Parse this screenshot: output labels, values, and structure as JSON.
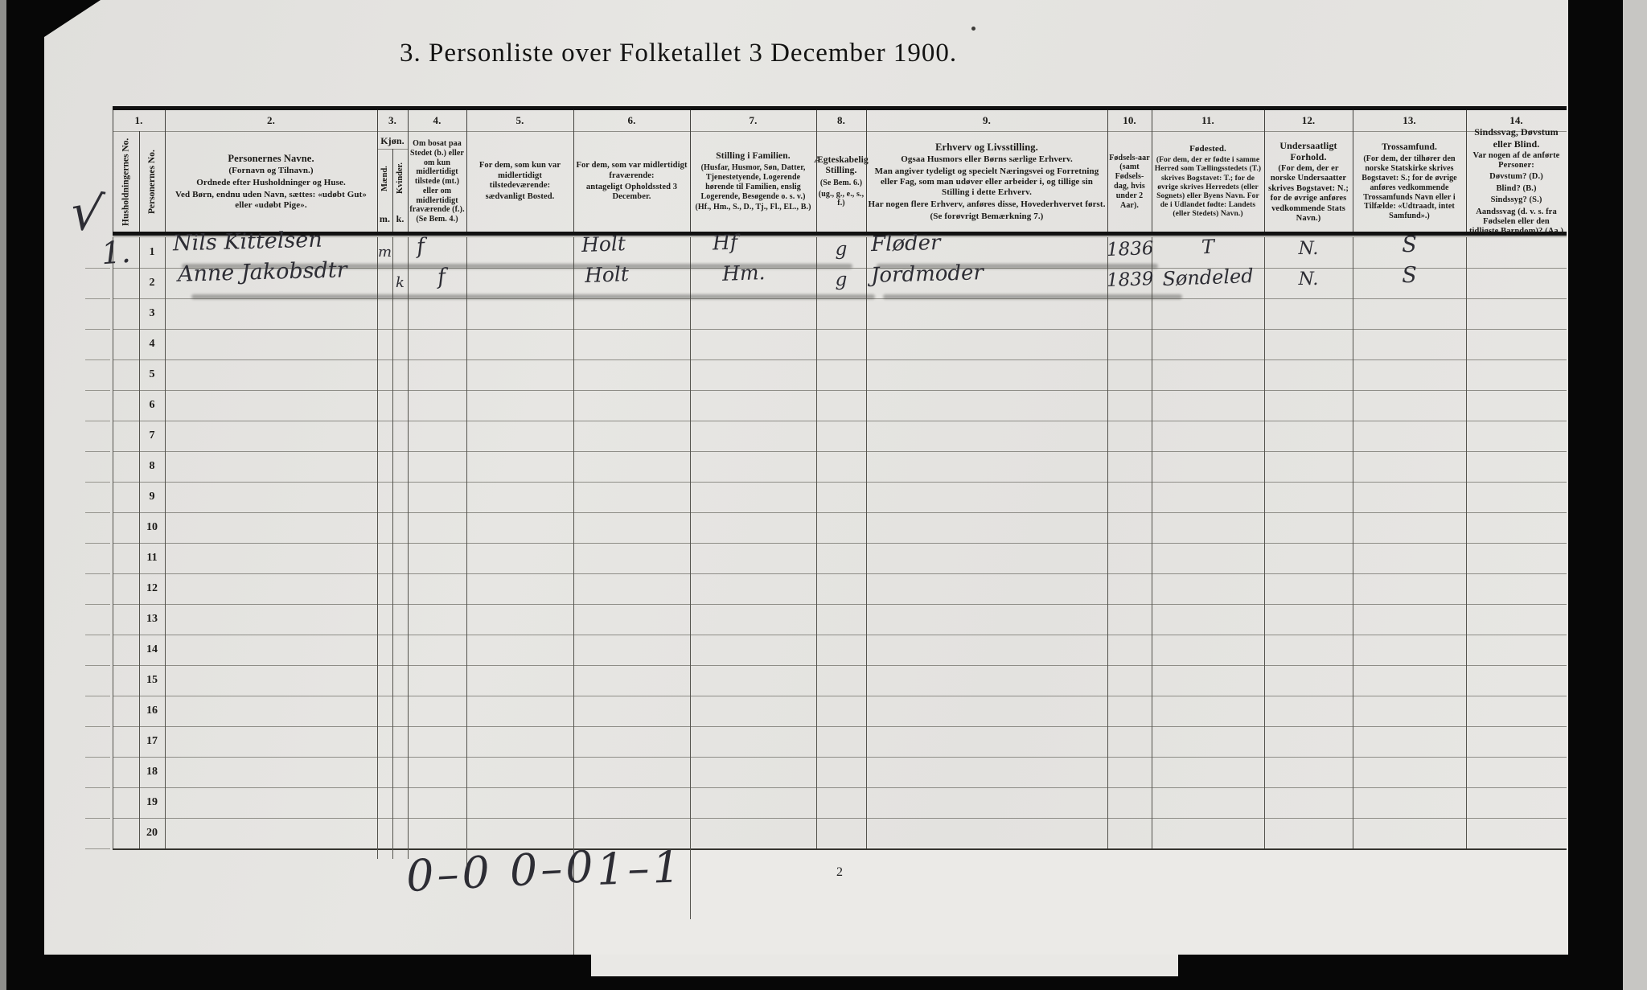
{
  "title": "3. Personliste over Folketallet 3 December 1900.",
  "margin": {
    "check": "√",
    "household_no": "1."
  },
  "table": {
    "columns": [
      {
        "number": "1.",
        "vertical_labels": [
          "Husholdningernes No.",
          "Personernes No."
        ]
      },
      {
        "number": "2.",
        "title": "Personernes Navne.",
        "lines": [
          "(Fornavn og Tilnavn.)",
          "Ordnede efter Husholdninger og Huse.",
          "Ved Børn, endnu uden Navn, sættes: «udøbt Gut» eller «udøbt Pige»."
        ]
      },
      {
        "number": "3.",
        "title": "Kjøn.",
        "vertical_labels": [
          "Mænd.",
          "Kvinder."
        ],
        "bottom_labels": [
          "m.",
          "k."
        ]
      },
      {
        "number": "4.",
        "lines": [
          "Om bosat paa Stedet (b.) eller om kun midlertidigt tilstede (mt.) eller om midlertidigt fraværende (f.). (Se Bem. 4.)"
        ]
      },
      {
        "number": "5.",
        "lines": [
          "For dem, som kun var midlertidigt tilstedeværende:",
          "sædvanligt Bosted."
        ]
      },
      {
        "number": "6.",
        "lines": [
          "For dem, som var midlertidigt fraværende:",
          "antageligt Opholdssted 3 December."
        ]
      },
      {
        "number": "7.",
        "title": "Stilling i Familien.",
        "lines": [
          "(Husfar, Husmor, Søn, Datter, Tjenestetyende, Logerende hørende til Familien, enslig Logerende, Besøgende o. s. v.)",
          "(Hf., Hm., S., D., Tj., Fl., EL., B.)"
        ]
      },
      {
        "number": "8.",
        "title": "Ægteskabelig Stilling.",
        "lines": [
          "(Se Bem. 6.)",
          "(ug., g., e., s., f.)"
        ]
      },
      {
        "number": "9.",
        "title": "Erhverv og Livsstilling.",
        "lines": [
          "Ogsaa Husmors eller Børns særlige Erhverv.",
          "Man angiver tydeligt og specielt Næringsvei og Forretning eller Fag, som man udøver eller arbeider i, og tillige sin Stilling i dette Erhverv.",
          "Har nogen flere Erhverv, anføres disse, Hovederhvervet først.",
          "(Se forøvrigt Bemærkning 7.)"
        ]
      },
      {
        "number": "10.",
        "lines": [
          "Fødsels-aar (samt Fødsels-dag, hvis under 2 Aar)."
        ]
      },
      {
        "number": "11.",
        "title": "Fødested.",
        "lines": [
          "(For dem, der er fødte i samme Herred som Tællingsstedets (T.) skrives Bogstavet: T.; for de øvrige skrives Herredets (eller Sognets) eller Byens Navn. For de i Udlandet fødte: Landets (eller Stedets) Navn.)"
        ]
      },
      {
        "number": "12.",
        "title": "Undersaatligt Forhold.",
        "lines": [
          "(For dem, der er norske Undersaatter skrives Bogstavet: N.; for de øvrige anføres vedkommende Stats Navn.)"
        ]
      },
      {
        "number": "13.",
        "title": "Trossamfund.",
        "lines": [
          "(For dem, der tilhører den norske Statskirke skrives Bogstavet: S.; for de øvrige anføres vedkommende Trossamfunds Navn eller i Tilfælde: «Udtraadt, intet Samfund».)"
        ]
      },
      {
        "number": "14.",
        "title": "Sindssvag, Døvstum eller Blind.",
        "lines": [
          "Var nogen af de anførte Personer:",
          "Døvstum?  (D.)",
          "Blind?  (B.)",
          "Sindssyg?  (S.)",
          "Aandssvag (d. v. s. fra Fødselen eller den tidligste Barndom)? (Aa.)"
        ]
      }
    ],
    "row_numbers": [
      "1",
      "2",
      "3",
      "4",
      "5",
      "6",
      "7",
      "8",
      "9",
      "10",
      "11",
      "12",
      "13",
      "14",
      "15",
      "16",
      "17",
      "18",
      "19",
      "20"
    ],
    "records": [
      {
        "person_no": "1",
        "name": "Nils Kittelsen",
        "gender": "m",
        "residency": "f",
        "whereabouts": "Holt",
        "family_position": "Hf",
        "marital_status": "g",
        "occupation": "Fløder",
        "birth_year": "1836",
        "birthplace": "T",
        "citizenship": "N.",
        "religion": "S"
      },
      {
        "person_no": "2",
        "name": "Anne Jakobsdtr",
        "gender": "k",
        "residency": "f",
        "whereabouts": "Holt",
        "family_position": "Hm.",
        "marital_status": "g",
        "occupation": "Jordmoder",
        "birth_year": "1839",
        "birthplace": "Søndeled",
        "citizenship": "N.",
        "religion": "S"
      }
    ]
  },
  "footer": {
    "tally_left": "0–0 0–0",
    "tally_right": "1–1",
    "page_number": "2"
  }
}
